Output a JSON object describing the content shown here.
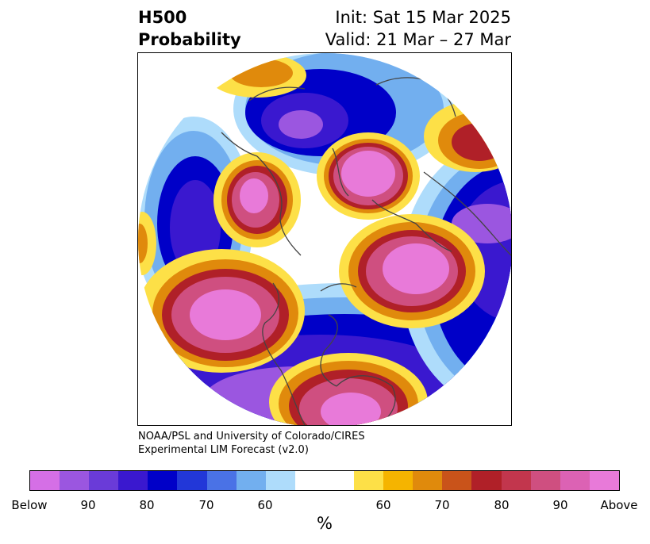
{
  "header": {
    "title_line1": "H500",
    "title_line2": "Probability",
    "init_label": "Init: Sat 15 Mar 2025",
    "valid_label": "Valid: 21 Mar – 27 Mar"
  },
  "credit": {
    "line1": "NOAA/PSL and University of Colorado/CIRES",
    "line2": "Experimental LIM Forecast (v2.0)"
  },
  "colorbar": {
    "colors": [
      "#d56fe6",
      "#9b56e0",
      "#6a3bd8",
      "#3a18cf",
      "#0000c8",
      "#2237d8",
      "#4a72e6",
      "#72afef",
      "#aedcfb",
      "#ffffff",
      "#ffffff",
      "#fde047",
      "#f5b400",
      "#e08a0c",
      "#c9531a",
      "#b02028",
      "#c2364d",
      "#cf4f80",
      "#dc62b4",
      "#e87ad9"
    ],
    "tick_labels": [
      "Below",
      "90",
      "80",
      "70",
      "60",
      "60",
      "70",
      "80",
      "90",
      "Above"
    ],
    "unit_label": "%"
  },
  "palette": {
    "above_core": "#e87ad9",
    "above_mid": "#cf4f80",
    "above_red": "#b02028",
    "above_orange": "#e08a0c",
    "above_yellow": "#fde047",
    "below_core": "#9b56e0",
    "below_mid": "#3a18cf",
    "below_blue": "#0000c8",
    "below_light": "#72afef",
    "below_pale": "#aedcfb",
    "coastline": "#444444"
  }
}
